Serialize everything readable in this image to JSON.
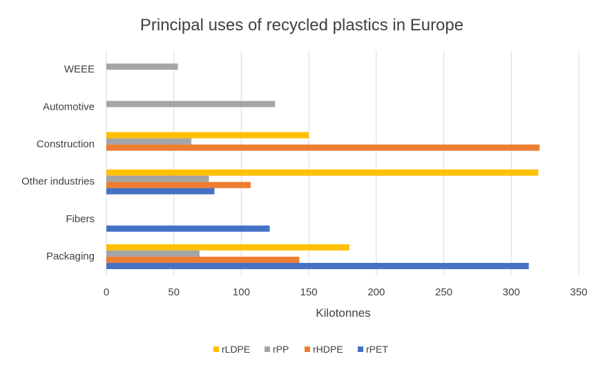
{
  "chart_data": {
    "type": "bar",
    "orientation": "horizontal",
    "title": "Principal uses of recycled plastics in Europe",
    "xlabel": "Kilotonnes",
    "ylabel": "",
    "xlim": [
      0,
      350
    ],
    "xticks": [
      "0",
      "50",
      "100",
      "150",
      "200",
      "250",
      "300",
      "350"
    ],
    "grid": "vertical",
    "legend_position": "bottom",
    "categories": [
      "Packaging",
      "Fibers",
      "Other industries",
      "Construction",
      "Automotive",
      "WEEE"
    ],
    "series": [
      {
        "name": "rLDPE",
        "color": "#FFC000",
        "values": [
          180,
          null,
          320,
          150,
          null,
          null
        ]
      },
      {
        "name": "rPP",
        "color": "#A5A5A5",
        "values": [
          69,
          null,
          76,
          63,
          125,
          53
        ]
      },
      {
        "name": "rHDPE",
        "color": "#ED7D31",
        "values": [
          143,
          null,
          107,
          321,
          null,
          null
        ]
      },
      {
        "name": "rPET",
        "color": "#4472C4",
        "values": [
          313,
          121,
          80,
          null,
          null,
          null
        ]
      }
    ]
  }
}
